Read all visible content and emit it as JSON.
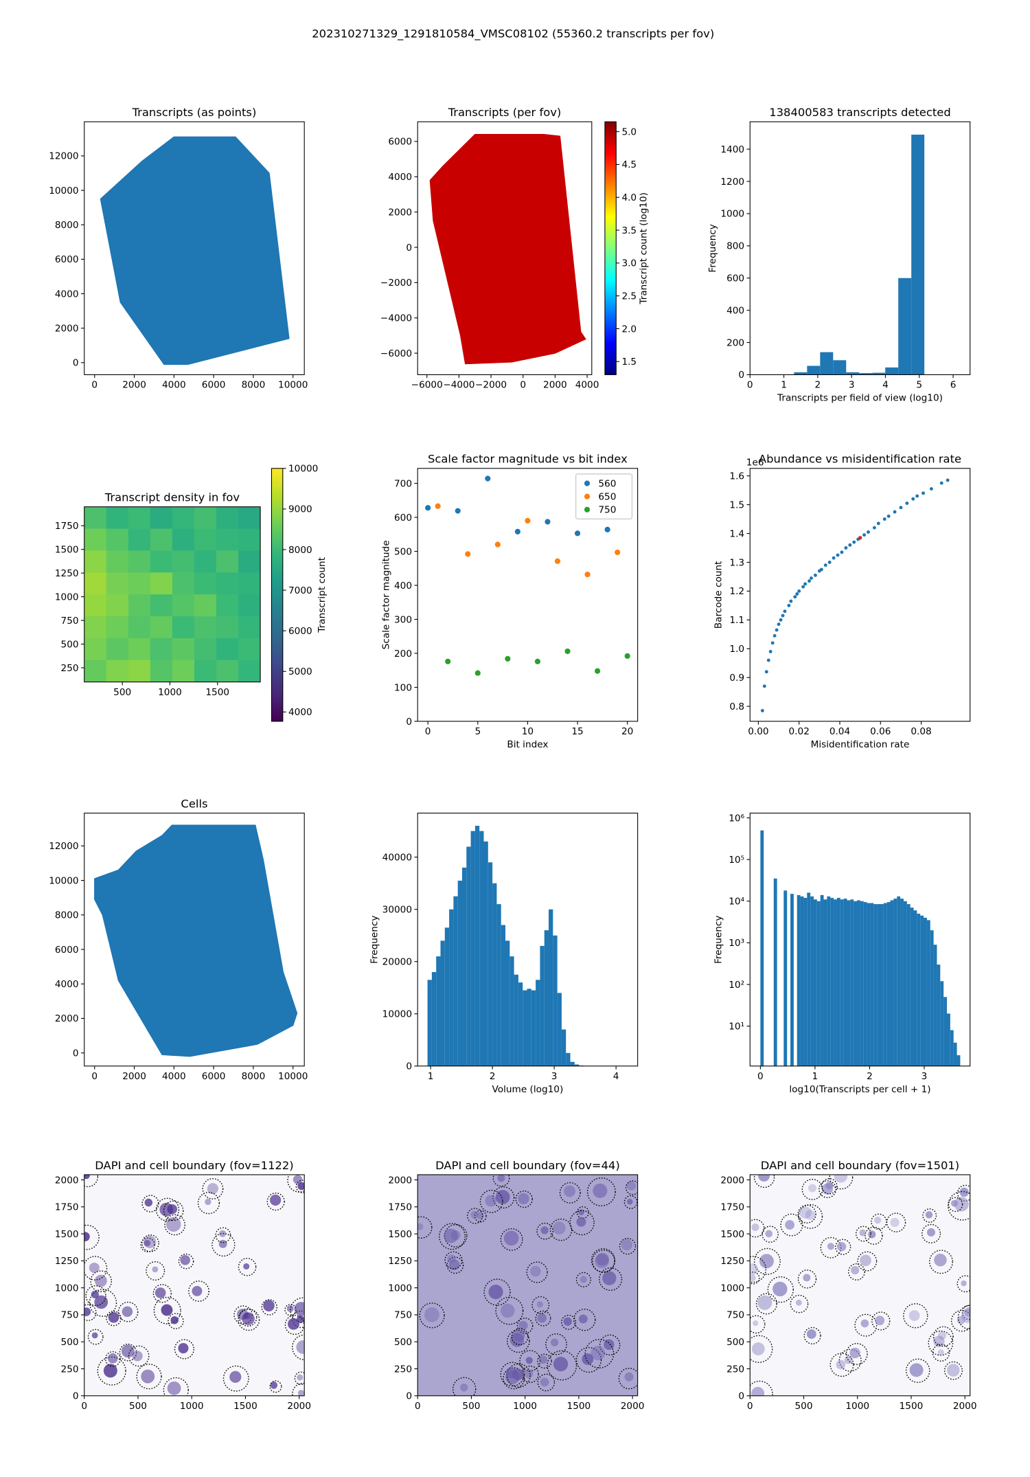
{
  "figure": {
    "title": "202310271329_1291810584_VMSC08102 (55360.2 transcripts per fov)"
  },
  "chart_data": [
    {
      "type": "region",
      "title": "Transcripts (as points)",
      "color": "#1f77b4",
      "x": [
        300,
        2400,
        4000,
        7100,
        8800,
        9800,
        4700,
        3500,
        1300
      ],
      "y": [
        9500,
        11700,
        13100,
        13100,
        11000,
        1400,
        -100,
        -100,
        3500
      ],
      "xlim": [
        -520,
        10570
      ],
      "ylim": [
        -700,
        13980
      ],
      "xticks": [
        0,
        2000,
        4000,
        6000,
        8000,
        10000
      ],
      "yticks": [
        0,
        2000,
        4000,
        6000,
        8000,
        10000,
        12000
      ]
    },
    {
      "type": "region",
      "title": "Transcripts (per fov)",
      "color": "#c80000",
      "x": [
        -5800,
        -5000,
        -3000,
        1300,
        2300,
        3600,
        3900,
        2000,
        -700,
        -3600,
        -3900,
        -5600
      ],
      "y": [
        3800,
        4600,
        6400,
        6400,
        6300,
        -4800,
        -5200,
        -6000,
        -6500,
        -6600,
        -5000,
        1500
      ],
      "xlim": [
        -6580,
        4290
      ],
      "ylim": [
        -7220,
        7115
      ],
      "xticks": [
        {
          "value": -6000,
          "label": "−6000"
        },
        {
          "value": -4000,
          "label": "−4000"
        },
        {
          "value": -2000,
          "label": "−2000"
        },
        0,
        2000,
        4000
      ],
      "yticks": [
        {
          "value": -6000,
          "label": "−6000"
        },
        {
          "value": -4000,
          "label": "−4000"
        },
        {
          "value": -2000,
          "label": "−2000"
        },
        0,
        2000,
        4000,
        6000
      ],
      "colorbar": {
        "label": "Transcript count (log10)",
        "colormap": "jet",
        "clim": [
          1.3,
          5.15
        ],
        "ticks": [
          1.5,
          {
            "value": 2,
            "label": "2.0"
          },
          2.5,
          {
            "value": 3,
            "label": "3.0"
          },
          3.5,
          {
            "value": 4,
            "label": "4.0"
          },
          4.5,
          {
            "value": 5,
            "label": "5.0"
          }
        ]
      }
    },
    {
      "type": "histogram",
      "title": "138400583 transcripts detected",
      "color": "#1f77b4",
      "xlabel": "Transcripts per field of view (log10)",
      "ylabel": "Frequency",
      "bins": [
        1.3,
        1.685,
        2.07,
        2.455,
        2.84,
        3.225,
        3.61,
        3.995,
        4.38,
        4.765,
        5.15
      ],
      "counts": [
        15,
        55,
        140,
        90,
        15,
        10,
        12,
        45,
        600,
        1490
      ],
      "xlim": [
        0,
        6.5
      ],
      "ylim": [
        0,
        1570
      ],
      "xticks": [
        0,
        1,
        2,
        3,
        4,
        5,
        6
      ],
      "yticks": [
        0,
        200,
        400,
        600,
        800,
        1000,
        1200,
        1400
      ]
    },
    {
      "type": "heatmap",
      "title": "Transcript density in fov",
      "z": [
        [
          8200,
          7800,
          8000,
          7600,
          7900,
          8100,
          7700,
          7500
        ],
        [
          8600,
          8300,
          7900,
          8200,
          7700,
          8000,
          7900,
          7800
        ],
        [
          8900,
          8500,
          8300,
          8000,
          8100,
          7800,
          8200,
          7600
        ],
        [
          9100,
          8700,
          8600,
          8800,
          8200,
          8000,
          7900,
          7800
        ],
        [
          9000,
          8800,
          8400,
          8100,
          8300,
          8500,
          8000,
          7700
        ],
        [
          8800,
          8600,
          8300,
          8500,
          8000,
          8200,
          8100,
          7900
        ],
        [
          8700,
          8400,
          8600,
          8200,
          8400,
          8100,
          7800,
          8000
        ],
        [
          8500,
          8800,
          8900,
          8300,
          8600,
          8000,
          8200,
          7900
        ]
      ],
      "xlim": [
        100,
        1950
      ],
      "ylim": [
        100,
        1950
      ],
      "xticks": [
        500,
        1000,
        1500
      ],
      "yticks": [
        250,
        500,
        750,
        1000,
        1250,
        1500,
        1750
      ],
      "colorbar": {
        "label": "Transcript count",
        "colormap": "viridis",
        "clim": [
          3770,
          10000
        ],
        "ticks": [
          4000,
          5000,
          6000,
          7000,
          8000,
          9000,
          10000
        ]
      }
    },
    {
      "type": "scatter",
      "title": "Scale factor magnitude vs bit index",
      "xlabel": "Bit index",
      "ylabel": "Scale factor magnitude",
      "legend": "upper right",
      "series": [
        {
          "name": "560",
          "color": "#1f77b4",
          "x": [
            0,
            3,
            6,
            9,
            12,
            15,
            18
          ],
          "y": [
            628,
            619,
            714,
            558,
            587,
            553,
            564
          ]
        },
        {
          "name": "650",
          "color": "#ff7f0e",
          "x": [
            1,
            4,
            7,
            10,
            13,
            16,
            19
          ],
          "y": [
            633,
            492,
            520,
            590,
            471,
            432,
            497
          ]
        },
        {
          "name": "750",
          "color": "#2ca02c",
          "x": [
            2,
            5,
            8,
            11,
            14,
            17,
            20
          ],
          "y": [
            176,
            142,
            184,
            176,
            206,
            148,
            192
          ]
        }
      ],
      "xlim": [
        -1.03,
        21.03
      ],
      "ylim": [
        0,
        744
      ],
      "xticks": [
        0,
        5,
        10,
        15,
        20
      ],
      "yticks": [
        0,
        100,
        200,
        300,
        400,
        500,
        600,
        700
      ]
    },
    {
      "type": "scatter",
      "title": "Abundance vs misidentification rate",
      "xlabel": "Misidentification rate",
      "ylabel": "Barcode count",
      "offset_label": "1e6",
      "series": [
        {
          "color": "#1f77b4",
          "x": [
            0.002,
            0.003,
            0.004,
            0.005,
            0.006,
            0.007,
            0.008,
            0.009,
            0.01,
            0.011,
            0.012,
            0.013,
            0.015,
            0.016,
            0.018,
            0.019,
            0.02,
            0.022,
            0.023,
            0.025,
            0.026,
            0.028,
            0.03,
            0.031,
            0.033,
            0.035,
            0.037,
            0.039,
            0.041,
            0.043,
            0.045,
            0.047,
            0.049,
            0.052,
            0.054,
            0.057,
            0.059,
            0.062,
            0.064,
            0.067,
            0.07,
            0.073,
            0.076,
            0.078,
            0.081,
            0.085,
            0.09,
            0.093
          ],
          "y": [
            0.785,
            0.87,
            0.92,
            0.96,
            0.99,
            1.02,
            1.045,
            1.065,
            1.085,
            1.1,
            1.115,
            1.13,
            1.15,
            1.165,
            1.18,
            1.19,
            1.2,
            1.215,
            1.225,
            1.235,
            1.245,
            1.255,
            1.27,
            1.275,
            1.29,
            1.3,
            1.315,
            1.325,
            1.335,
            1.35,
            1.36,
            1.37,
            1.38,
            1.395,
            1.405,
            1.42,
            1.435,
            1.45,
            1.46,
            1.475,
            1.49,
            1.505,
            1.52,
            1.53,
            1.54,
            1.555,
            1.575,
            1.585
          ]
        }
      ],
      "highlight": {
        "x": 0.05,
        "y": 1.385,
        "color": "#d62728"
      },
      "xlim": [
        -0.0041,
        0.104
      ],
      "ylim": [
        0.748,
        1.626
      ],
      "xticks": [
        {
          "value": 0,
          "label": "0.00"
        },
        0.02,
        0.04,
        0.06,
        0.08
      ],
      "yticks": [
        0.8,
        0.9,
        {
          "value": 1,
          "label": "1.0"
        },
        1.1,
        1.2,
        1.3,
        1.4,
        1.5,
        1.6
      ]
    },
    {
      "type": "region",
      "title": "Cells",
      "color": "#1f77b4",
      "x": [
        0,
        1200,
        2100,
        3400,
        3900,
        8100,
        8500,
        9500,
        10200,
        10000,
        8200,
        4800,
        3400,
        1200,
        400,
        0
      ],
      "y": [
        10100,
        10600,
        11700,
        12600,
        13200,
        13200,
        11200,
        4700,
        2300,
        1600,
        500,
        -200,
        -100,
        4200,
        8000,
        8900
      ],
      "xlim": [
        -520,
        10570
      ],
      "ylim": [
        -760,
        13900
      ],
      "xticks": [
        0,
        2000,
        4000,
        6000,
        8000,
        10000
      ],
      "yticks": [
        0,
        2000,
        4000,
        6000,
        8000,
        10000,
        12000
      ]
    },
    {
      "type": "histogram",
      "color": "#1f77b4",
      "xlabel": "Volume (log10)",
      "ylabel": "Frequency",
      "bins": [
        0.95,
        1.02,
        1.09,
        1.16,
        1.23,
        1.3,
        1.37,
        1.44,
        1.51,
        1.58,
        1.65,
        1.72,
        1.79,
        1.86,
        1.93,
        2.0,
        2.07,
        2.14,
        2.21,
        2.28,
        2.35,
        2.42,
        2.49,
        2.56,
        2.63,
        2.7,
        2.77,
        2.84,
        2.91,
        2.98,
        3.05,
        3.12,
        3.19,
        3.26,
        3.33,
        3.4,
        3.47,
        3.54,
        3.61,
        3.68,
        3.75,
        3.82,
        3.89,
        3.96,
        4.03,
        4.1
      ],
      "counts": [
        16500,
        18000,
        21000,
        24000,
        26500,
        30000,
        32500,
        35500,
        38000,
        42000,
        45000,
        46000,
        45000,
        43000,
        39000,
        35000,
        31000,
        27000,
        24000,
        21000,
        17500,
        16000,
        14500,
        14800,
        14500,
        16500,
        23000,
        26000,
        30000,
        25000,
        14000,
        7000,
        2500,
        800,
        300,
        100,
        40,
        20,
        10,
        5,
        3,
        2,
        1,
        1,
        1
      ],
      "xlim": [
        0.79,
        4.35
      ],
      "ylim": [
        0,
        48430
      ],
      "xticks": [
        1,
        2,
        3,
        4
      ],
      "yticks": [
        0,
        10000,
        20000,
        30000,
        40000
      ]
    },
    {
      "type": "histogram",
      "color": "#1f77b4",
      "xlabel": "log10(Transcripts per cell + 1)",
      "ylabel": "Frequency",
      "ylog": true,
      "bins": [
        0,
        0.061,
        0.122,
        0.183,
        0.244,
        0.305,
        0.366,
        0.427,
        0.488,
        0.549,
        0.61,
        0.671,
        0.732,
        0.793,
        0.854,
        0.915,
        0.976,
        1.037,
        1.098,
        1.159,
        1.22,
        1.281,
        1.342,
        1.403,
        1.464,
        1.525,
        1.586,
        1.647,
        1.708,
        1.769,
        1.83,
        1.891,
        1.952,
        2.013,
        2.074,
        2.135,
        2.196,
        2.257,
        2.318,
        2.379,
        2.44,
        2.501,
        2.562,
        2.623,
        2.684,
        2.745,
        2.806,
        2.867,
        2.928,
        2.989,
        3.05,
        3.111,
        3.172,
        3.233,
        3.294,
        3.355,
        3.416,
        3.477,
        3.538,
        3.599,
        3.66
      ],
      "counts": [
        500000,
        0,
        0,
        0,
        35000,
        0,
        0,
        18000,
        0,
        15000,
        0,
        14000,
        13000,
        12000,
        16000,
        13000,
        11000,
        10000,
        14000,
        11000,
        13000,
        12000,
        11000,
        12000,
        11000,
        11500,
        10500,
        11000,
        10000,
        10500,
        10000,
        9500,
        9000,
        9000,
        8500,
        8500,
        8500,
        9000,
        9500,
        10500,
        11500,
        13000,
        11500,
        10000,
        8500,
        7000,
        6000,
        5000,
        4500,
        4000,
        3500,
        2000,
        900,
        300,
        120,
        50,
        20,
        8,
        4,
        2
      ],
      "xlim": [
        -0.19,
        3.84
      ],
      "ylim": [
        1.1,
        1300000
      ],
      "xticks": [
        0,
        1,
        2,
        3
      ],
      "yticks": [
        {
          "value": 10,
          "label": "10¹"
        },
        {
          "value": 100,
          "label": "10²"
        },
        {
          "value": 1000,
          "label": "10³"
        },
        {
          "value": 10000,
          "label": "10⁴"
        },
        {
          "value": 100000,
          "label": "10⁵"
        },
        {
          "value": 1000000,
          "label": "10⁶"
        }
      ]
    },
    {
      "type": "image",
      "title": "DAPI and cell boundary (fov=1122)",
      "background": "#f7f7fb",
      "stain": "#4b2f8f",
      "xlim": [
        0,
        2048
      ],
      "ylim": [
        0,
        2048
      ],
      "xticks": [
        0,
        500,
        1000,
        1500,
        2000
      ],
      "yticks": [
        0,
        250,
        500,
        750,
        1000,
        1250,
        1500,
        1750,
        2000
      ]
    },
    {
      "type": "image",
      "title": "DAPI and cell boundary (fov=44)",
      "background": "#aaa6cf",
      "stain": "#6a5aa8",
      "xlim": [
        0,
        2048
      ],
      "ylim": [
        0,
        2048
      ],
      "xticks": [
        0,
        500,
        1000,
        1500,
        2000
      ],
      "yticks": [
        0,
        250,
        500,
        750,
        1000,
        1250,
        1500,
        1750,
        2000
      ]
    },
    {
      "type": "image",
      "title": "DAPI and cell boundary (fov=1501)",
      "background": "#f7f7fb",
      "stain": "#8c87c2",
      "xlim": [
        0,
        2048
      ],
      "ylim": [
        0,
        2048
      ],
      "xticks": [
        0,
        500,
        1000,
        1500,
        2000
      ],
      "yticks": [
        0,
        250,
        500,
        750,
        1000,
        1250,
        1500,
        1750,
        2000
      ]
    }
  ]
}
